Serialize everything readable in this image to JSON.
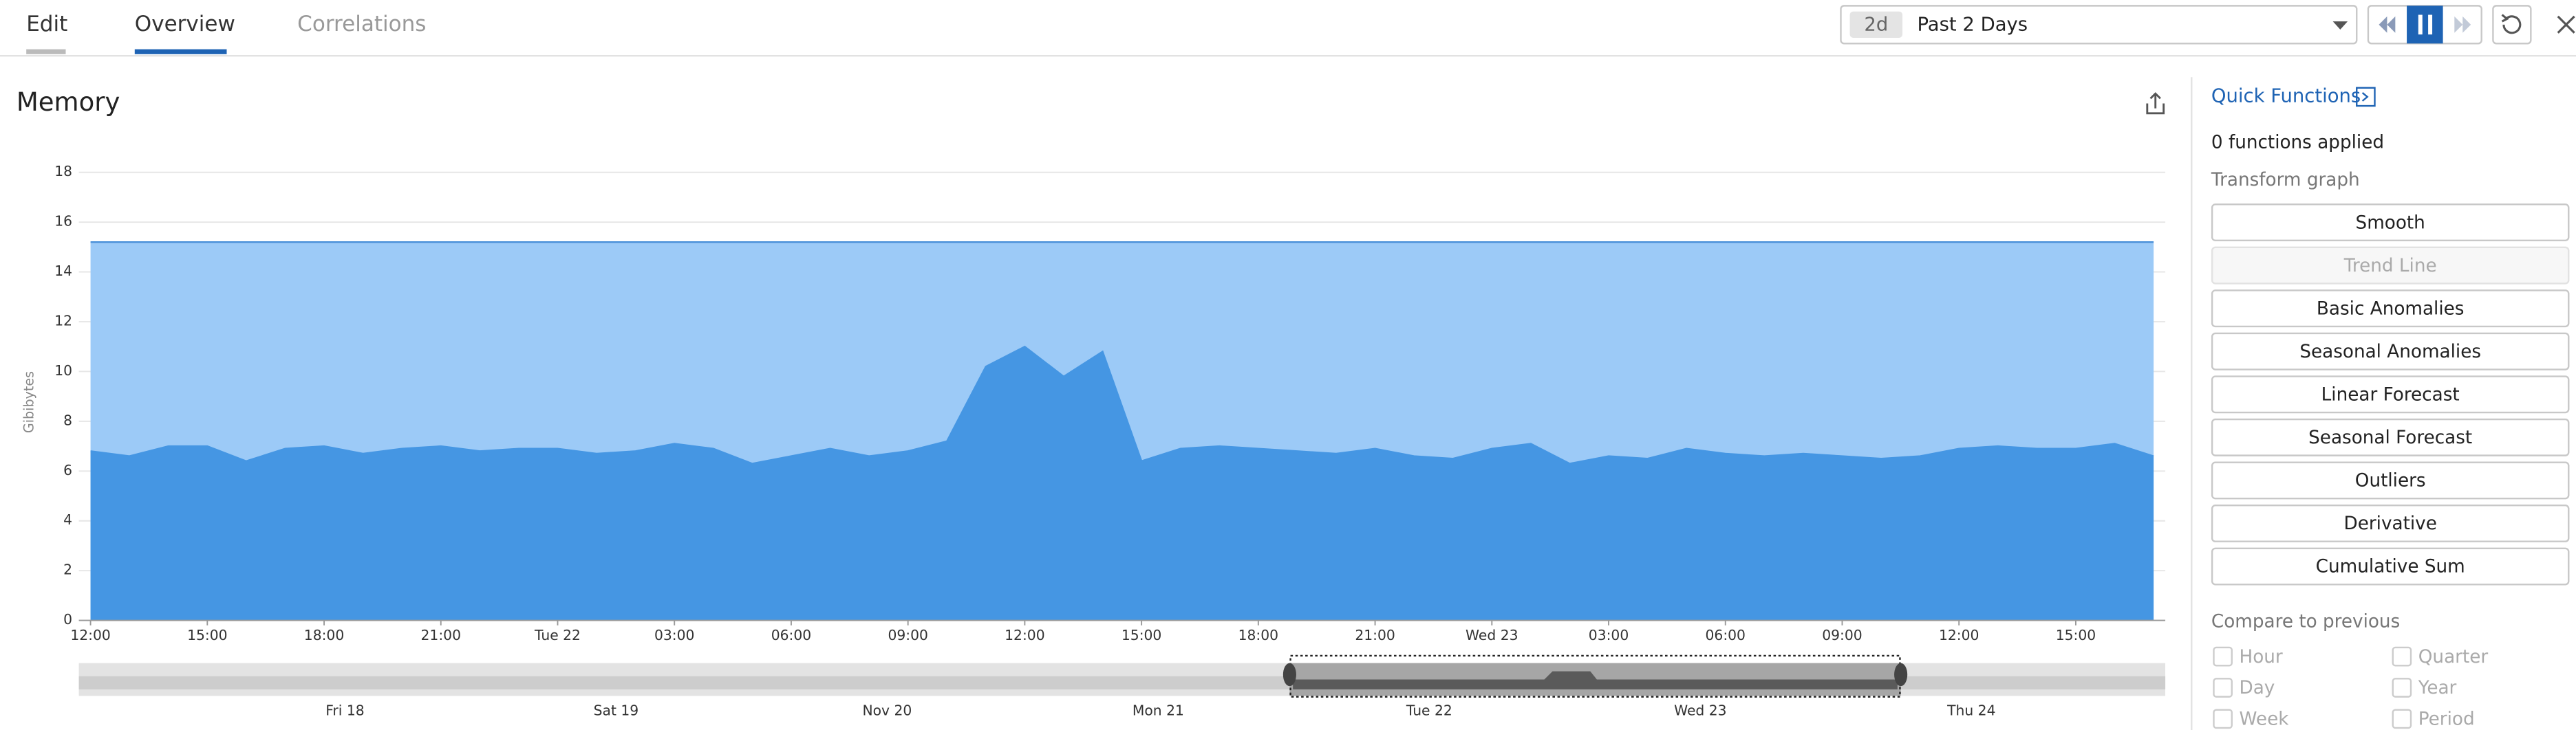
{
  "tabs": [
    "Edit",
    "Overview",
    "Correlations"
  ],
  "time_range": {
    "badge": "2d",
    "label": "Past 2 Days"
  },
  "chart_data": {
    "type": "area",
    "title": "Memory",
    "y_label": "Gibibytes",
    "x": [
      0,
      1,
      2,
      3,
      4,
      5,
      6,
      7,
      8,
      9,
      10,
      11,
      12,
      13,
      14,
      15,
      16,
      17,
      18,
      19,
      20,
      21,
      22,
      23,
      24,
      25,
      26,
      27,
      28,
      29,
      30,
      31,
      32,
      33,
      34,
      35,
      36,
      37,
      38,
      39,
      40,
      41,
      42,
      43,
      44,
      45,
      46,
      47,
      48,
      49,
      50,
      51,
      52,
      53
    ],
    "xlim": [
      -0.3,
      53.3
    ],
    "xticks": [
      {
        "value": 0,
        "label": "12:00"
      },
      {
        "value": 3,
        "label": "15:00"
      },
      {
        "value": 6,
        "label": "18:00"
      },
      {
        "value": 9,
        "label": "21:00"
      },
      {
        "value": 12,
        "label": "Tue 22"
      },
      {
        "value": 15,
        "label": "03:00"
      },
      {
        "value": 18,
        "label": "06:00"
      },
      {
        "value": 21,
        "label": "09:00"
      },
      {
        "value": 24,
        "label": "12:00"
      },
      {
        "value": 27,
        "label": "15:00"
      },
      {
        "value": 30,
        "label": "18:00"
      },
      {
        "value": 33,
        "label": "21:00"
      },
      {
        "value": 36,
        "label": "Wed 23"
      },
      {
        "value": 39,
        "label": "03:00"
      },
      {
        "value": 42,
        "label": "06:00"
      },
      {
        "value": 45,
        "label": "09:00"
      },
      {
        "value": 48,
        "label": "12:00"
      },
      {
        "value": 51,
        "label": "15:00"
      }
    ],
    "ylim": [
      0,
      18
    ],
    "yticks": [
      0,
      2,
      4,
      6,
      8,
      10,
      12,
      14,
      16,
      18
    ],
    "grid": true,
    "series": [
      {
        "color": "#9ccaf7",
        "values": [
          15.2,
          15.2,
          15.2,
          15.2,
          15.2,
          15.2,
          15.2,
          15.2,
          15.2,
          15.2,
          15.2,
          15.2,
          15.2,
          15.2,
          15.2,
          15.2,
          15.2,
          15.2,
          15.2,
          15.2,
          15.2,
          15.2,
          15.2,
          15.2,
          15.2,
          15.2,
          15.2,
          15.2,
          15.2,
          15.2,
          15.2,
          15.2,
          15.2,
          15.2,
          15.2,
          15.2,
          15.2,
          15.2,
          15.2,
          15.2,
          15.2,
          15.2,
          15.2,
          15.2,
          15.2,
          15.2,
          15.2,
          15.2,
          15.2,
          15.2,
          15.2,
          15.2,
          15.2,
          15.2
        ]
      },
      {
        "color": "#4596e3",
        "values": [
          6.8,
          6.6,
          7.0,
          7.0,
          6.4,
          6.9,
          7.0,
          6.7,
          6.9,
          7.0,
          6.8,
          6.9,
          6.9,
          6.7,
          6.8,
          7.1,
          6.9,
          6.3,
          6.6,
          6.9,
          6.6,
          6.8,
          7.2,
          10.2,
          11.0,
          9.8,
          10.8,
          6.4,
          6.9,
          7.0,
          6.9,
          6.8,
          6.7,
          6.9,
          6.6,
          6.5,
          6.9,
          7.1,
          6.3,
          6.6,
          6.5,
          6.9,
          6.7,
          6.6,
          6.7,
          6.6,
          6.5,
          6.6,
          6.9,
          7.0,
          6.9,
          6.9,
          7.1,
          6.6
        ]
      }
    ]
  },
  "navigator_labels": [
    "Fri 18",
    "Sat 19",
    "Nov 20",
    "Mon 21",
    "Tue 22",
    "Wed 23",
    "Thu 24"
  ],
  "side_panel": {
    "title": "Quick Functions",
    "status": "0 functions applied",
    "transform_heading": "Transform graph",
    "transforms": [
      "Smooth",
      "Trend Line",
      "Basic Anomalies",
      "Seasonal Anomalies",
      "Linear Forecast",
      "Seasonal Forecast",
      "Outliers",
      "Derivative",
      "Cumulative Sum"
    ],
    "compare_heading": "Compare to previous",
    "compare_options": [
      "Hour",
      "Quarter",
      "Day",
      "Year",
      "Week",
      "Period"
    ]
  }
}
